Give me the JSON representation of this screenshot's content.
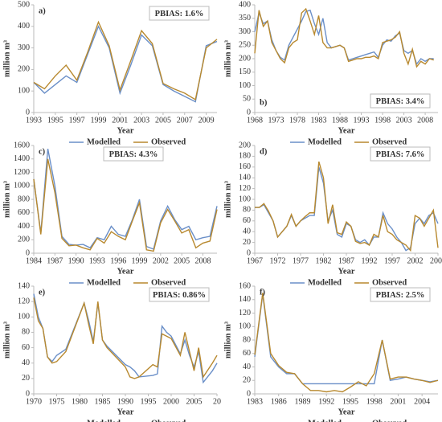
{
  "chart_data": [
    {
      "type": "line",
      "panel_label": "a)",
      "label_corner": "top-left",
      "annotation": "PBIAS: 1.6%",
      "annotation_corner": "top-right",
      "xlabel": "Year",
      "ylabel": "million m³",
      "legend_position": "bottom",
      "x": [
        1993,
        1994,
        1995,
        1996,
        1997,
        1998,
        1999,
        2000,
        2001,
        2002,
        2003,
        2004,
        2005,
        2006,
        2007,
        2008,
        2009,
        2010
      ],
      "xlim": [
        1993,
        2010
      ],
      "xticks": [
        1993,
        1995,
        1997,
        1999,
        2001,
        2003,
        2005,
        2007,
        2009
      ],
      "ylim": [
        0,
        500
      ],
      "yticks": [
        0,
        100,
        200,
        300,
        400,
        500
      ],
      "series": [
        {
          "name": "Modelled",
          "color": "#6a8fc8",
          "values": [
            140,
            90,
            130,
            170,
            140,
            270,
            400,
            300,
            90,
            220,
            360,
            310,
            130,
            100,
            75,
            50,
            310,
            330
          ]
        },
        {
          "name": "Observed",
          "color": "#b8892f",
          "values": [
            140,
            110,
            170,
            220,
            150,
            280,
            420,
            310,
            105,
            240,
            380,
            320,
            135,
            110,
            90,
            60,
            300,
            340
          ]
        }
      ]
    },
    {
      "type": "line",
      "panel_label": "b)",
      "label_corner": "bottom-left",
      "annotation": "PBIAS: 3.4%",
      "annotation_corner": "bottom-right",
      "xlabel": "Year",
      "ylabel": "million m³",
      "legend_position": "bottom",
      "x": [
        1968,
        1969,
        1970,
        1971,
        1972,
        1973,
        1974,
        1975,
        1976,
        1977,
        1978,
        1979,
        1980,
        1981,
        1982,
        1983,
        1984,
        1985,
        1986,
        1987,
        1988,
        1989,
        1990,
        1991,
        1992,
        1993,
        1994,
        1995,
        1996,
        1997,
        1998,
        1999,
        2000,
        2001,
        2002,
        2003,
        2004,
        2005,
        2006,
        2007,
        2008,
        2009,
        2010
      ],
      "xlim": [
        1968,
        2011
      ],
      "xticks": [
        1968,
        1973,
        1978,
        1983,
        1988,
        1993,
        1998,
        2003,
        2008
      ],
      "ylim": [
        0,
        400
      ],
      "yticks": [
        0,
        50,
        100,
        150,
        200,
        250,
        300,
        350,
        400
      ],
      "series": [
        {
          "name": "Modelled",
          "color": "#6a8fc8",
          "values": [
            300,
            370,
            330,
            340,
            270,
            230,
            205,
            195,
            250,
            280,
            310,
            340,
            375,
            380,
            330,
            290,
            350,
            260,
            240,
            245,
            250,
            240,
            195,
            200,
            205,
            210,
            215,
            220,
            225,
            205,
            250,
            270,
            265,
            285,
            295,
            230,
            220,
            230,
            180,
            200,
            190,
            200,
            200
          ]
        },
        {
          "name": "Observed",
          "color": "#b8892f",
          "values": [
            220,
            380,
            320,
            340,
            260,
            230,
            200,
            185,
            240,
            260,
            270,
            370,
            385,
            340,
            290,
            360,
            260,
            240,
            240,
            245,
            250,
            240,
            190,
            195,
            200,
            200,
            205,
            205,
            210,
            200,
            260,
            265,
            270,
            280,
            300,
            220,
            180,
            235,
            170,
            190,
            180,
            200,
            195
          ]
        }
      ]
    },
    {
      "type": "line",
      "panel_label": "c)",
      "label_corner": "top-left",
      "annotation": "PBIAS: 4.3%",
      "annotation_corner": "top-center",
      "xlabel": "Year",
      "ylabel": "million m³",
      "legend_position": "bottom",
      "x": [
        1984,
        1985,
        1986,
        1987,
        1988,
        1989,
        1990,
        1991,
        1992,
        1993,
        1994,
        1995,
        1996,
        1997,
        1998,
        1999,
        2000,
        2001,
        2002,
        2003,
        2004,
        2005,
        2006,
        2007,
        2008,
        2009,
        2010
      ],
      "xlim": [
        1984,
        2010
      ],
      "xticks": [
        1984,
        1987,
        1990,
        1993,
        1996,
        1999,
        2002,
        2005,
        2008
      ],
      "ylim": [
        0,
        1600
      ],
      "yticks": [
        0,
        200,
        400,
        600,
        800,
        1000,
        1200,
        1400,
        1600
      ],
      "series": [
        {
          "name": "Modelled",
          "color": "#6a8fc8",
          "values": [
            1100,
            300,
            1550,
            1000,
            250,
            130,
            120,
            130,
            80,
            230,
            200,
            400,
            280,
            250,
            500,
            800,
            100,
            60,
            480,
            700,
            500,
            350,
            400,
            200,
            230,
            250,
            700
          ]
        },
        {
          "name": "Observed",
          "color": "#b8892f",
          "values": [
            1100,
            280,
            1400,
            900,
            220,
            110,
            120,
            80,
            50,
            220,
            150,
            320,
            250,
            200,
            480,
            750,
            50,
            30,
            450,
            650,
            480,
            300,
            350,
            80,
            150,
            180,
            650
          ]
        }
      ]
    },
    {
      "type": "line",
      "panel_label": "d)",
      "label_corner": "top-left",
      "annotation": "PBIAS: 7.6%",
      "annotation_corner": "top-right",
      "xlabel": "Year",
      "ylabel": "million m³",
      "legend_position": "bottom",
      "x": [
        1967,
        1968,
        1969,
        1970,
        1971,
        1972,
        1973,
        1974,
        1975,
        1976,
        1977,
        1978,
        1979,
        1980,
        1981,
        1982,
        1983,
        1984,
        1985,
        1986,
        1987,
        1988,
        1989,
        1990,
        1991,
        1992,
        1993,
        1994,
        1995,
        1996,
        1997,
        1998,
        1999,
        2000,
        2001,
        2002,
        2003,
        2004,
        2005,
        2006,
        2007
      ],
      "xlim": [
        1967,
        2007
      ],
      "xticks": [
        1967,
        1972,
        1977,
        1982,
        1987,
        1992,
        1997,
        2002,
        2007
      ],
      "ylim": [
        0,
        200
      ],
      "yticks": [
        0,
        20,
        40,
        60,
        80,
        100,
        120,
        140,
        160,
        180,
        200
      ],
      "series": [
        {
          "name": "Modelled",
          "color": "#6a8fc8",
          "values": [
            85,
            85,
            90,
            75,
            60,
            30,
            40,
            50,
            70,
            50,
            60,
            65,
            70,
            70,
            160,
            130,
            60,
            80,
            35,
            30,
            55,
            50,
            25,
            20,
            25,
            15,
            30,
            30,
            75,
            55,
            45,
            30,
            20,
            5,
            10,
            55,
            65,
            55,
            70,
            75,
            55
          ]
        },
        {
          "name": "Observed",
          "color": "#b8892f",
          "values": [
            85,
            85,
            92,
            78,
            60,
            30,
            40,
            50,
            72,
            50,
            60,
            68,
            75,
            75,
            170,
            140,
            55,
            90,
            38,
            35,
            58,
            50,
            22,
            18,
            20,
            15,
            35,
            30,
            70,
            40,
            35,
            25,
            20,
            15,
            5,
            70,
            65,
            50,
            65,
            80,
            10
          ]
        }
      ]
    },
    {
      "type": "line",
      "panel_label": "e)",
      "label_corner": "top-left",
      "annotation": "PBIAS: 0.86%",
      "annotation_corner": "top-right",
      "xlabel": "Year",
      "ylabel": "million m³",
      "legend_position": "bottom",
      "x": [
        1970,
        1971,
        1972,
        1973,
        1974,
        1975,
        1977,
        1981,
        1982,
        1983,
        1984,
        1985,
        1986,
        1990,
        1991,
        1992,
        1993,
        1996,
        1997,
        1998,
        1999,
        2000,
        2002,
        2003,
        2004,
        2005,
        2006,
        2007,
        2009,
        2010
      ],
      "xlim": [
        1970,
        2010
      ],
      "xticks": [
        1970,
        1975,
        1980,
        1985,
        1990,
        1995,
        2000,
        2005,
        {
          "value": 2010,
          "label": "20"
        }
      ],
      "ylim": [
        0,
        140
      ],
      "yticks": [
        0,
        20,
        40,
        60,
        80,
        100,
        120,
        140
      ],
      "series": [
        {
          "name": "Modelled",
          "color": "#6a8fc8",
          "values": [
            130,
            100,
            85,
            48,
            42,
            50,
            58,
            118,
            95,
            68,
            118,
            70,
            62,
            38,
            35,
            30,
            22,
            24,
            26,
            88,
            80,
            75,
            52,
            70,
            50,
            35,
            55,
            15,
            30,
            40
          ]
        },
        {
          "name": "Observed",
          "color": "#b8892f",
          "values": [
            125,
            95,
            85,
            48,
            40,
            42,
            55,
            118,
            90,
            65,
            120,
            70,
            60,
            35,
            22,
            20,
            22,
            38,
            35,
            78,
            75,
            72,
            50,
            80,
            55,
            30,
            60,
            22,
            40,
            50
          ]
        }
      ]
    },
    {
      "type": "line",
      "panel_label": "f)",
      "label_corner": "top-left",
      "annotation": "PBIAS: 2.5%",
      "annotation_corner": "top-right",
      "xlabel": "Year",
      "ylabel": "million m³",
      "legend_position": "bottom",
      "x": [
        1983,
        1984,
        1985,
        1986,
        1987,
        1988,
        1989,
        1990,
        1991,
        1992,
        1993,
        1994,
        1995,
        1996,
        1997,
        1998,
        1999,
        2000,
        2001,
        2002,
        2003,
        2004,
        2005,
        2006
      ],
      "xlim": [
        1983,
        2006
      ],
      "xticks": [
        1983,
        1986,
        1989,
        1992,
        1995,
        1998,
        2001,
        2004
      ],
      "ylim": [
        0,
        160
      ],
      "yticks": [
        0,
        20,
        40,
        60,
        80,
        100,
        120,
        140,
        160
      ],
      "series": [
        {
          "name": "Modelled",
          "color": "#6a8fc8",
          "values": [
            55,
            148,
            55,
            40,
            30,
            30,
            15,
            15,
            15,
            15,
            15,
            15,
            15,
            15,
            15,
            15,
            80,
            20,
            22,
            25,
            22,
            20,
            18,
            20
          ]
        },
        {
          "name": "Observed",
          "color": "#b8892f",
          "values": [
            58,
            150,
            60,
            42,
            32,
            30,
            15,
            5,
            5,
            3,
            5,
            3,
            10,
            18,
            12,
            30,
            80,
            22,
            25,
            25,
            22,
            20,
            17,
            20
          ]
        }
      ]
    }
  ]
}
